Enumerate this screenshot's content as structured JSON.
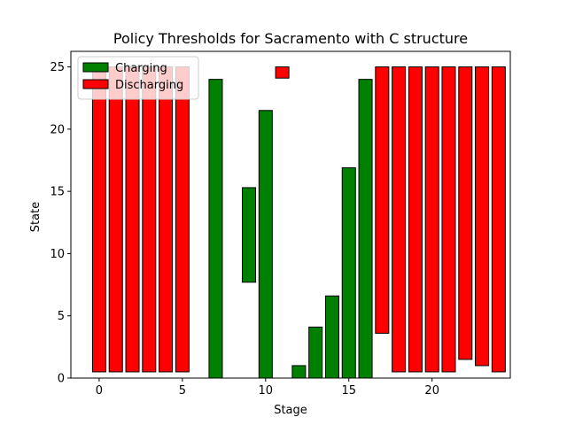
{
  "chart_data": {
    "type": "bar",
    "title": "Policy Thresholds for Sacramento with C structure",
    "xlabel": "Stage",
    "ylabel": "State",
    "xlim": [
      -1.7,
      24.7
    ],
    "ylim": [
      0,
      26.25
    ],
    "xticks": [
      0,
      5,
      10,
      15,
      20
    ],
    "yticks": [
      0,
      5,
      10,
      15,
      20,
      25
    ],
    "legend": {
      "placement": "top-left",
      "entries": [
        {
          "label": "Charging",
          "color": "#008000"
        },
        {
          "label": "Discharging",
          "color": "#ff0000"
        }
      ]
    },
    "series": [
      {
        "name": "Charging",
        "color": "#008000",
        "bars": [
          {
            "x": 7,
            "low": 0,
            "high": 24
          },
          {
            "x": 9,
            "low": 7.7,
            "high": 15.3
          },
          {
            "x": 10,
            "low": 0,
            "high": 21.5
          },
          {
            "x": 12,
            "low": 0,
            "high": 1
          },
          {
            "x": 13,
            "low": 0,
            "high": 4.1
          },
          {
            "x": 14,
            "low": 0,
            "high": 6.6
          },
          {
            "x": 15,
            "low": 0,
            "high": 16.9
          },
          {
            "x": 16,
            "low": 0,
            "high": 24
          }
        ]
      },
      {
        "name": "Discharging",
        "color": "#ff0000",
        "bars": [
          {
            "x": 0,
            "low": 0.5,
            "high": 25
          },
          {
            "x": 1,
            "low": 0.5,
            "high": 25
          },
          {
            "x": 2,
            "low": 0.5,
            "high": 25
          },
          {
            "x": 3,
            "low": 0.5,
            "high": 25
          },
          {
            "x": 4,
            "low": 0.5,
            "high": 25
          },
          {
            "x": 5,
            "low": 0.5,
            "high": 25
          },
          {
            "x": 11,
            "low": 24.1,
            "high": 25
          },
          {
            "x": 17,
            "low": 3.6,
            "high": 25
          },
          {
            "x": 18,
            "low": 0.5,
            "high": 25
          },
          {
            "x": 19,
            "low": 0.5,
            "high": 25
          },
          {
            "x": 20,
            "low": 0.5,
            "high": 25
          },
          {
            "x": 21,
            "low": 0.5,
            "high": 25
          },
          {
            "x": 22,
            "low": 1.5,
            "high": 25
          },
          {
            "x": 23,
            "low": 1.0,
            "high": 25
          },
          {
            "x": 24,
            "low": 0.5,
            "high": 25
          }
        ]
      }
    ]
  }
}
